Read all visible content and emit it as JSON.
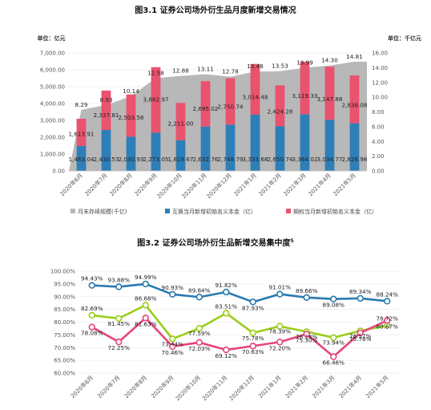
{
  "charts": [
    {
      "title": "图3.1 证券公司场外衍生品月度新增交易情况",
      "left_unit": "单位：亿元",
      "right_unit": "单位：千亿元",
      "chart_data": {
        "type": "bar",
        "categories": [
          "2020年6月",
          "2020年7月",
          "2020年8月",
          "2020年9月",
          "2020年10月",
          "2020年11月",
          "2020年12月",
          "2021年1月",
          "2021年2月",
          "2021年3月",
          "2021年4月",
          "2021年5月"
        ],
        "y_left": {
          "range": [
            0,
            7000
          ],
          "ticks": [
            "0.00",
            "1,000.00",
            "2,000.00",
            "3,000.00",
            "4,000.00",
            "5,000.00",
            "6,000.00",
            "7,000.00"
          ]
        },
        "y_right": {
          "range": [
            0,
            16
          ],
          "ticks": [
            "0.00",
            "2.00",
            "4.00",
            "6.00",
            "8.00",
            "10.00",
            "12.00",
            "14.00",
            "16.00"
          ]
        },
        "series": [
          {
            "name": "月末存续规模(千亿)",
            "type": "area",
            "axis": "right",
            "color": "#b8b8b8",
            "values": [
              8.29,
              8.93,
              10.14,
              12.58,
              12.88,
              13.11,
              12.78,
              13.48,
              13.53,
              13.99,
              14.3,
              14.81
            ],
            "labels": [
              "8.29",
              "8.93",
              "10.14",
              "12.58",
              "12.88",
              "13.11",
              "12.78",
              "13.48",
              "13.53",
              "13.99",
              "14.30",
              "14.81"
            ]
          },
          {
            "name": "互换当月新增初始名义本金（亿）",
            "type": "bar",
            "axis": "left",
            "color": "#2e7fb8",
            "values": [
              1483.04,
              2430.53,
              2030.93,
              2273.05,
              1819.67,
              2632.76,
              2748.79,
              3333.68,
              2650.74,
              3364.02,
              3034.77,
              2826.98
            ],
            "labels": [
              "1,483.04",
              "2,430.53",
              "2,030.93",
              "2,273.05",
              "1,819.67",
              "2,632.76",
              "2,748.79",
              "3,333.68",
              "2,650.74",
              "3,364.02",
              "3,034.77",
              "2,826.98"
            ]
          },
          {
            "name": "期权当月新增初始名义本金（亿）",
            "type": "bar",
            "axis": "left",
            "color": "#e9536e",
            "values": [
              1613.91,
              2337.81,
              2503.58,
              3882.97,
              2211.0,
              2695.02,
              2750.74,
              3014.48,
              2424.28,
              3119.33,
              3147.88,
              2838.08
            ],
            "labels": [
              "1,613.91",
              "2,337.81",
              "2,503.58",
              "3,882.97",
              "2,211.00",
              "2,695.02",
              "2,750.74",
              "3,014.48",
              "2,424.28",
              "3,119.33",
              "3,147.88",
              "2,838.08"
            ]
          }
        ]
      }
    },
    {
      "title": "图3.2 证券公司场外衍生品新增交易集中度",
      "superscript": "5",
      "chart_data": {
        "type": "line",
        "categories": [
          "2020年6月",
          "2020年7月",
          "2020年8月",
          "2020年9月",
          "2020年10月",
          "2020年11月",
          "2020年12月",
          "2021年1月",
          "2021年2月",
          "2021年3月",
          "2021年4月",
          "2021年5月"
        ],
        "y": {
          "range": [
            60,
            100
          ],
          "ticks": [
            "60.00%",
            "65.00%",
            "70.00%",
            "75.00%",
            "80.00%",
            "85.00%",
            "90.00%",
            "95.00%",
            "100.00%"
          ]
        },
        "series": [
          {
            "color": "#2a7ab0",
            "values": [
              94.43,
              93.88,
              94.99,
              90.93,
              89.84,
              91.82,
              87.93,
              91.01,
              89.66,
              89.08,
              89.34,
              88.24
            ],
            "labels": [
              "94.43%",
              "93.88%",
              "94.99%",
              "90.93%",
              "89.84%",
              "91.82%",
              "87.93%",
              "91.01%",
              "89.66%",
              "89.08%",
              "89.34%",
              "88.24%"
            ]
          },
          {
            "color": "#9acd1a",
            "values": [
              82.69,
              81.45,
              86.68,
              73.44,
              77.59,
              83.51,
              75.78,
              78.39,
              76.24,
              73.94,
              76.57,
              78.72
            ],
            "labels": [
              "82.69%",
              "81.45%",
              "86.68%",
              "73.44%",
              "77.59%",
              "83.51%",
              "75.78%",
              "78.39%",
              "76.24%",
              "73.94%",
              "76.57%",
              "78.72%"
            ]
          },
          {
            "color": "#e6457a",
            "values": [
              78.08,
              72.25,
              81.63,
              70.46,
              72.03,
              69.12,
              70.63,
              72.2,
              75.3,
              66.46,
              75.78,
              80.67
            ],
            "labels": [
              "78.08%",
              "72.25%",
              "81.63%",
              "70.46%",
              "72.03%",
              "69.12%",
              "70.63%",
              "72.20%",
              "75.30%",
              "66.46%",
              "75.78%",
              "80.67%"
            ]
          }
        ]
      }
    }
  ]
}
